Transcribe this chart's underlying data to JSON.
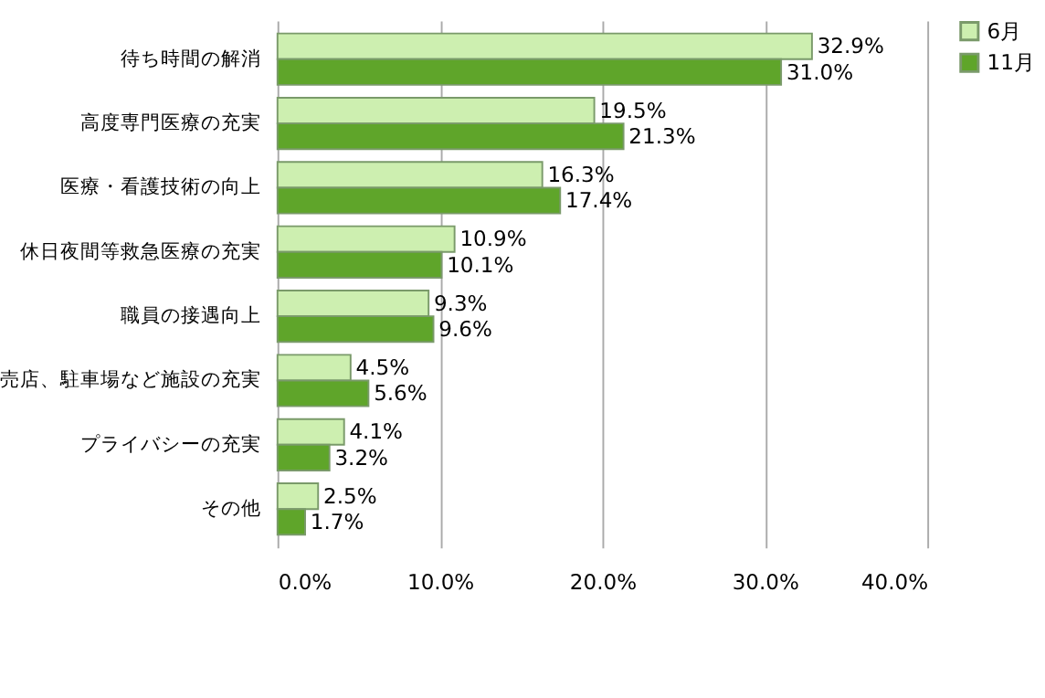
{
  "chart_data": {
    "type": "bar",
    "orientation": "horizontal",
    "categories": [
      "待ち時間の解消",
      "高度専門医療の充実",
      "医療・看護技術の向上",
      "休日夜間等救急医療の充実",
      "職員の接遇向上",
      "売店、駐車場など施設の充実",
      "プライバシーの充実",
      "その他"
    ],
    "series": [
      {
        "name": "6月",
        "color": "#cdefb0",
        "values": [
          32.9,
          19.5,
          16.3,
          10.9,
          9.3,
          4.5,
          4.1,
          2.5
        ],
        "value_labels": [
          "32.9%",
          "19.5%",
          "16.3%",
          "10.9%",
          "9.3%",
          "4.5%",
          "4.1%",
          "2.5%"
        ]
      },
      {
        "name": "11月",
        "color": "#5fa52a",
        "values": [
          31.0,
          21.3,
          17.4,
          10.1,
          9.6,
          5.6,
          3.2,
          1.7
        ],
        "value_labels": [
          "31.0%",
          "21.3%",
          "17.4%",
          "10.1%",
          "9.6%",
          "5.6%",
          "3.2%",
          "1.7%"
        ]
      }
    ],
    "xlim": [
      0,
      40
    ],
    "xticks": [
      {
        "value": 0,
        "label": "0.0%"
      },
      {
        "value": 10,
        "label": "10.0%"
      },
      {
        "value": 20,
        "label": "20.0%"
      },
      {
        "value": 30,
        "label": "30.0%"
      },
      {
        "value": 40,
        "label": "40.0%"
      }
    ],
    "grid": "x",
    "legend": "right"
  }
}
